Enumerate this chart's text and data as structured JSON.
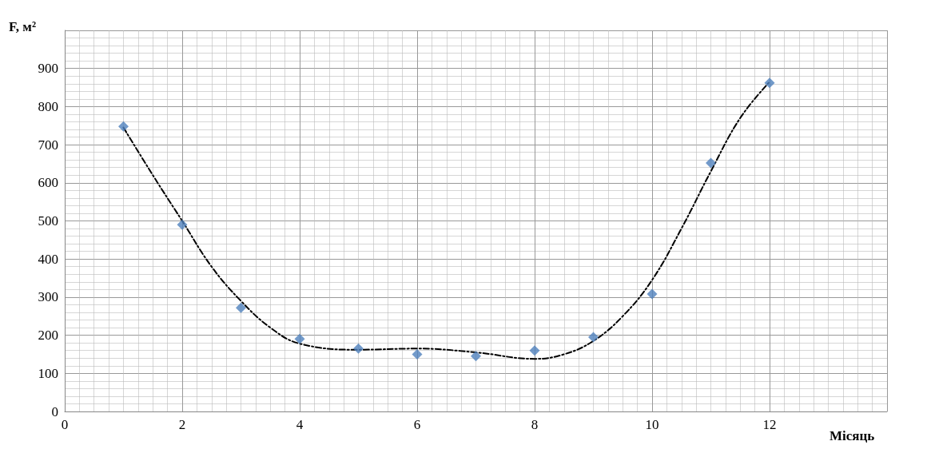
{
  "chart_data": {
    "type": "scatter",
    "xlabel": "Місяць",
    "ylabel": "F, м²",
    "marker": "diamond",
    "grid": true,
    "xlim": [
      0,
      14
    ],
    "xticks": [
      0,
      2,
      4,
      6,
      8,
      10,
      12
    ],
    "ylim": [
      0,
      1000
    ],
    "yticks": [
      0,
      100,
      200,
      300,
      400,
      500,
      600,
      700,
      800,
      900
    ],
    "series": [
      {
        "color": "#4f81bd",
        "x": [
          1,
          2,
          3,
          4,
          5,
          6,
          7,
          8,
          9,
          10,
          11,
          12
        ],
        "values": [
          748,
          490,
          272,
          190,
          165,
          150,
          145,
          160,
          195,
          308,
          652,
          862
        ]
      },
      {
        "type": "line",
        "color": "#000000",
        "line_style": "dashed",
        "marker": "none",
        "x": [
          1,
          1.5,
          2,
          2.5,
          3,
          3.5,
          4,
          5,
          6,
          7,
          8,
          8.5,
          9,
          9.5,
          10,
          10.5,
          11,
          11.5,
          12
        ],
        "values": [
          745,
          620,
          500,
          380,
          290,
          220,
          178,
          162,
          165,
          155,
          138,
          150,
          185,
          250,
          345,
          480,
          630,
          770,
          865
        ]
      }
    ]
  }
}
